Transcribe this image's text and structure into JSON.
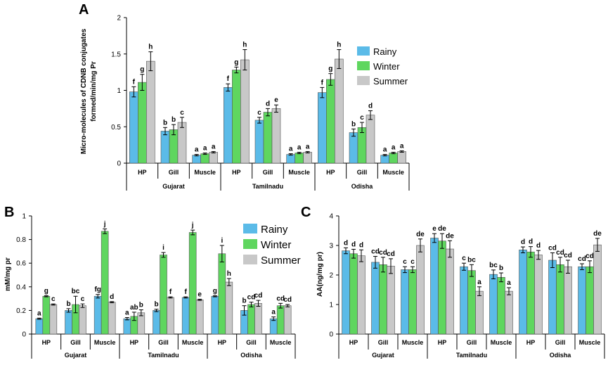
{
  "chart_data": [
    {
      "panel": "A",
      "type": "bar",
      "ylabel_line1": "Micro-molecules of CDNB conjugates",
      "ylabel_line2": "formed/min/mg Pr",
      "ylim": [
        0,
        2
      ],
      "yticks": [
        0,
        0.5,
        1,
        1.5,
        2
      ],
      "ytick_labels": [
        "0",
        "0.5",
        "1",
        "1.5",
        "2"
      ],
      "groups": [
        "Gujarat",
        "Tamilnadu",
        "Odisha"
      ],
      "categories": [
        "HP",
        "Gill",
        "Muscle",
        "HP",
        "Gill",
        "Muscle",
        "HP",
        "Gill",
        "Muscle"
      ],
      "series": [
        {
          "name": "Rainy",
          "color": "#5bbbe8",
          "values": [
            0.98,
            0.44,
            0.11,
            1.04,
            0.59,
            0.12,
            0.97,
            0.42,
            0.11
          ],
          "errors": [
            0.07,
            0.05,
            0.01,
            0.05,
            0.04,
            0.01,
            0.07,
            0.05,
            0.01
          ]
        },
        {
          "name": "Winter",
          "color": "#5fd65f",
          "values": [
            1.11,
            0.46,
            0.13,
            1.28,
            0.7,
            0.14,
            1.15,
            0.49,
            0.14
          ],
          "errors": [
            0.11,
            0.07,
            0.01,
            0.04,
            0.05,
            0.01,
            0.08,
            0.07,
            0.01
          ]
        },
        {
          "name": "Summer",
          "color": "#c8c8c8",
          "values": [
            1.4,
            0.56,
            0.15,
            1.42,
            0.75,
            0.15,
            1.43,
            0.66,
            0.16
          ],
          "errors": [
            0.13,
            0.07,
            0.01,
            0.14,
            0.05,
            0.01,
            0.13,
            0.06,
            0.01
          ]
        }
      ],
      "letters": [
        [
          "f",
          "b",
          "a",
          "f",
          "c",
          "a",
          "f",
          "b",
          "a"
        ],
        [
          "g",
          "b",
          "a",
          "g",
          "d",
          "a",
          "g",
          "c",
          "a"
        ],
        [
          "h",
          "c",
          "a",
          "h",
          "e",
          "a",
          "h",
          "d",
          "a"
        ]
      ],
      "legend": "right"
    },
    {
      "panel": "B",
      "type": "bar",
      "ylabel_line1": "mM/mg pr",
      "ylabel_line2": "",
      "ylim": [
        0,
        1
      ],
      "yticks": [
        0,
        0.2,
        0.4,
        0.6,
        0.8,
        1
      ],
      "ytick_labels": [
        "0",
        "0.2",
        "0.4",
        "0.6",
        "0.8",
        "1"
      ],
      "groups": [
        "Gujarat",
        "Tamilnadu",
        "Odisha"
      ],
      "categories": [
        "HP",
        "Gill",
        "Muscle",
        "HP",
        "Gill",
        "Muscle",
        "HP",
        "Gill",
        "Muscle"
      ],
      "series": [
        {
          "name": "Rainy",
          "color": "#5bbbe8",
          "values": [
            0.13,
            0.2,
            0.32,
            0.13,
            0.2,
            0.31,
            0.32,
            0.2,
            0.13
          ],
          "errors": [
            0.005,
            0.015,
            0.015,
            0.01,
            0.01,
            0.005,
            0.005,
            0.04,
            0.015
          ]
        },
        {
          "name": "Winter",
          "color": "#5fd65f",
          "values": [
            0.32,
            0.25,
            0.87,
            0.15,
            0.67,
            0.86,
            0.68,
            0.25,
            0.24
          ],
          "errors": [
            0.005,
            0.07,
            0.02,
            0.035,
            0.02,
            0.02,
            0.07,
            0.02,
            0.02
          ]
        },
        {
          "name": "Summer",
          "color": "#c8c8c8",
          "values": [
            0.25,
            0.24,
            0.27,
            0.18,
            0.31,
            0.29,
            0.44,
            0.26,
            0.24
          ],
          "errors": [
            0.005,
            0.015,
            0.005,
            0.025,
            0.005,
            0.005,
            0.03,
            0.025,
            0.01
          ]
        }
      ],
      "letters": [
        [
          "a",
          "b",
          "fg",
          "a",
          "b",
          "f",
          "g",
          "b",
          "a"
        ],
        [
          "g",
          "bc",
          "j",
          "ab",
          "i",
          "j",
          "i",
          "cd",
          "cd"
        ],
        [
          "c",
          "c",
          "d",
          "b",
          "f",
          "e",
          "h",
          "cd",
          "cd"
        ]
      ],
      "legend": "right"
    },
    {
      "panel": "C",
      "type": "bar",
      "ylabel_line1": "AA(ng/mg pr)",
      "ylabel_line2": "",
      "ylim": [
        0,
        4
      ],
      "yticks": [
        0,
        1,
        2,
        3,
        4
      ],
      "ytick_labels": [
        "0",
        "1",
        "2",
        "3",
        "4"
      ],
      "groups": [
        "Gujarat",
        "Tamilnadu",
        "Odisha"
      ],
      "categories": [
        "HP",
        "Gill",
        "Muscle",
        "HP",
        "Gill",
        "Muscle",
        "HP",
        "Gill",
        "Muscle"
      ],
      "series": [
        {
          "name": "Rainy",
          "color": "#5bbbe8",
          "values": [
            2.82,
            2.43,
            2.18,
            3.25,
            2.28,
            2.02,
            2.85,
            2.5,
            2.28
          ],
          "errors": [
            0.1,
            0.2,
            0.1,
            0.15,
            0.12,
            0.15,
            0.1,
            0.25,
            0.1
          ]
        },
        {
          "name": "Winter",
          "color": "#5fd65f",
          "values": [
            2.72,
            2.35,
            2.18,
            3.15,
            2.15,
            1.92,
            2.78,
            2.35,
            2.28
          ],
          "errors": [
            0.15,
            0.25,
            0.1,
            0.25,
            0.2,
            0.15,
            0.18,
            0.25,
            0.2
          ]
        },
        {
          "name": "Summer",
          "color": "#c8c8c8",
          "values": [
            2.65,
            2.3,
            3.0,
            2.88,
            1.45,
            1.45,
            2.68,
            2.28,
            3.02
          ],
          "errors": [
            0.2,
            0.25,
            0.22,
            0.28,
            0.15,
            0.12,
            0.15,
            0.22,
            0.22
          ]
        }
      ],
      "letters": [
        [
          "d",
          "cd",
          "c",
          "e",
          "c",
          "bc",
          "d",
          "cd",
          "cd"
        ],
        [
          "d",
          "cd",
          "c",
          "de",
          "bc",
          "b",
          "d",
          "cd",
          "cd"
        ],
        [
          "d",
          "cd",
          "de",
          "de",
          "a",
          "a",
          "d",
          "cd",
          "de"
        ]
      ],
      "legend": "none"
    }
  ]
}
